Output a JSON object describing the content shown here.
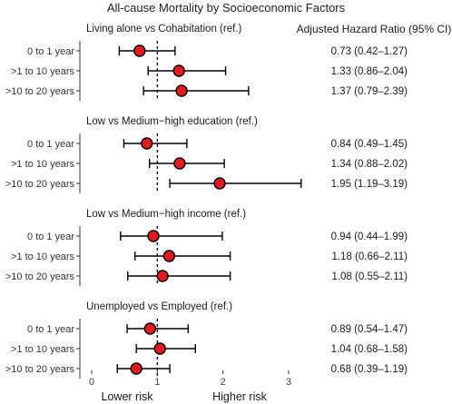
{
  "chart_data": {
    "type": "forest",
    "title": "All-cause Mortality by Socioeconomic Factors",
    "column_header": "Adjusted Hazard Ratio (95% CI)",
    "xlim": [
      -0.1,
      3.3
    ],
    "xticks": [
      0,
      1,
      2,
      3
    ],
    "reference_value": 1,
    "xlabel_left": "Lower risk",
    "xlabel_right": "Higher risk",
    "point_color": "#e41a1c",
    "panels": [
      {
        "title": "Living alone vs Cohabitation (ref.)",
        "rows": [
          {
            "label": "0 to 1 year",
            "hr": 0.73,
            "lo": 0.42,
            "hi": 1.27,
            "text": "0.73 (0.42–1.27)"
          },
          {
            "label": ">1 to 10 years",
            "hr": 1.33,
            "lo": 0.86,
            "hi": 2.04,
            "text": "1.33 (0.86–2.04)"
          },
          {
            "label": ">10 to 20 years",
            "hr": 1.37,
            "lo": 0.79,
            "hi": 2.39,
            "text": "1.37 (0.79–2.39)"
          }
        ]
      },
      {
        "title": "Low vs Medium−high education (ref.)",
        "rows": [
          {
            "label": "0 to 1 year",
            "hr": 0.84,
            "lo": 0.49,
            "hi": 1.45,
            "text": "0.84 (0.49–1.45)"
          },
          {
            "label": ">1 to 10 years",
            "hr": 1.34,
            "lo": 0.88,
            "hi": 2.02,
            "text": "1.34 (0.88–2.02)"
          },
          {
            "label": ">10 to 20 years",
            "hr": 1.95,
            "lo": 1.19,
            "hi": 3.19,
            "text": "1.95 (1.19–3.19)"
          }
        ]
      },
      {
        "title": "Low vs Medium−high income (ref.)",
        "rows": [
          {
            "label": "0 to 1 year",
            "hr": 0.94,
            "lo": 0.44,
            "hi": 1.99,
            "text": "0.94 (0.44–1.99)"
          },
          {
            "label": ">1 to 10 years",
            "hr": 1.18,
            "lo": 0.66,
            "hi": 2.11,
            "text": "1.18 (0.66–2.11)"
          },
          {
            "label": ">10 to 20 years",
            "hr": 1.08,
            "lo": 0.55,
            "hi": 2.11,
            "text": "1.08 (0.55–2.11)"
          }
        ]
      },
      {
        "title": "Unemployed vs Employed (ref.)",
        "rows": [
          {
            "label": "0 to 1 year",
            "hr": 0.89,
            "lo": 0.54,
            "hi": 1.47,
            "text": "0.89 (0.54–1.47)"
          },
          {
            "label": ">1 to 10 years",
            "hr": 1.04,
            "lo": 0.68,
            "hi": 1.58,
            "text": "1.04 (0.68–1.58)"
          },
          {
            "label": ">10 to 20 years",
            "hr": 0.68,
            "lo": 0.39,
            "hi": 1.19,
            "text": "0.68 (0.39–1.19)"
          }
        ]
      }
    ]
  }
}
